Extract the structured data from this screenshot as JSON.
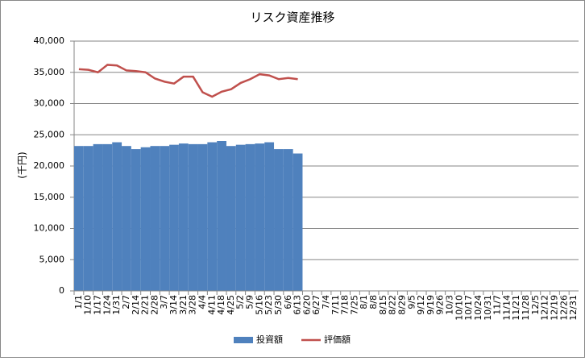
{
  "chart_data": {
    "type": "bar_line",
    "title": "リスク資産推移",
    "y_label": "(千円)",
    "categories": [
      "1/1",
      "1/10",
      "1/17",
      "1/24",
      "1/31",
      "2/7",
      "2/14",
      "2/21",
      "2/28",
      "3/7",
      "3/14",
      "3/21",
      "3/28",
      "4/4",
      "4/11",
      "4/18",
      "4/25",
      "5/2",
      "5/9",
      "5/16",
      "5/23",
      "5/30",
      "6/6",
      "6/13",
      "6/20",
      "6/27",
      "7/4",
      "7/11",
      "7/18",
      "7/25",
      "8/1",
      "8/8",
      "8/15",
      "8/22",
      "8/29",
      "9/5",
      "9/12",
      "9/19",
      "9/26",
      "10/3",
      "10/10",
      "10/17",
      "10/24",
      "10/31",
      "11/7",
      "11/14",
      "11/21",
      "11/28",
      "12/5",
      "12/12",
      "12/19",
      "12/26",
      "12/31"
    ],
    "series": [
      {
        "name": "投資額",
        "type": "bar",
        "color": "#4f81bd",
        "values": [
          23200,
          23200,
          23500,
          23500,
          23800,
          23200,
          22700,
          23000,
          23200,
          23200,
          23400,
          23600,
          23500,
          23500,
          23800,
          24000,
          23200,
          23400,
          23500,
          23600,
          23800,
          22700,
          22700,
          22000,
          null,
          null,
          null,
          null,
          null,
          null,
          null,
          null,
          null,
          null,
          null,
          null,
          null,
          null,
          null,
          null,
          null,
          null,
          null,
          null,
          null,
          null,
          null,
          null,
          null,
          null,
          null,
          null,
          null
        ]
      },
      {
        "name": "評価額",
        "type": "line",
        "color": "#c0504d",
        "values": [
          35500,
          35400,
          35000,
          36200,
          36100,
          35300,
          35200,
          35000,
          34000,
          33500,
          33200,
          34300,
          34300,
          31800,
          31100,
          31900,
          32300,
          33300,
          33900,
          34700,
          34500,
          33900,
          34100,
          33900,
          null,
          null,
          null,
          null,
          null,
          null,
          null,
          null,
          null,
          null,
          null,
          null,
          null,
          null,
          null,
          null,
          null,
          null,
          null,
          null,
          null,
          null,
          null,
          null,
          null,
          null,
          null,
          null,
          null
        ]
      }
    ],
    "ylim": [
      0,
      40000
    ],
    "yticks": [
      0,
      {
        "value": 5000,
        "label": "5,000"
      },
      {
        "value": 10000,
        "label": "10,000"
      },
      {
        "value": 15000,
        "label": "15,000"
      },
      {
        "value": 20000,
        "label": "20,000"
      },
      {
        "value": 25000,
        "label": "25,000"
      },
      {
        "value": 30000,
        "label": "30,000"
      },
      {
        "value": 35000,
        "label": "35,000"
      },
      {
        "value": 40000,
        "label": "40,000"
      }
    ],
    "grid": true,
    "legend": "bottom"
  }
}
